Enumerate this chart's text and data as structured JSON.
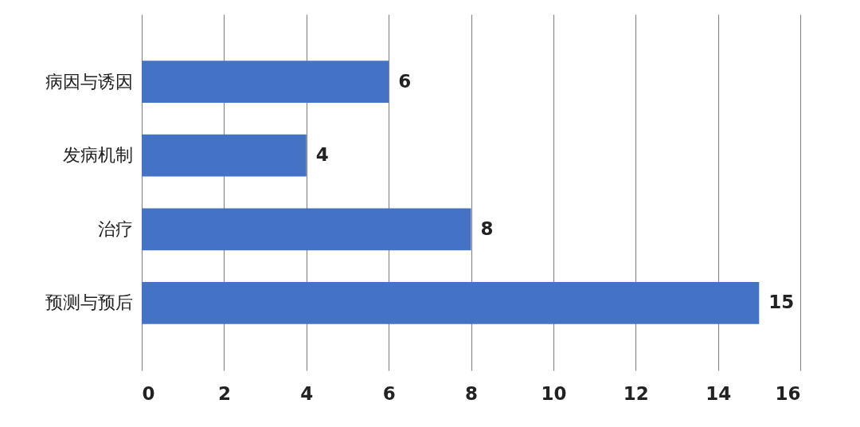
{
  "chart_data": {
    "type": "bar",
    "orientation": "horizontal",
    "categories": [
      "病因与诱因",
      "发病机制",
      "治疗",
      "预测与预后"
    ],
    "values": [
      6,
      4,
      8,
      15
    ],
    "color": "#4472c4",
    "xlim": [
      0,
      16
    ],
    "xticks": [
      0,
      2,
      4,
      6,
      8,
      10,
      12,
      14,
      16
    ],
    "grid": "x",
    "data_labels": true
  }
}
